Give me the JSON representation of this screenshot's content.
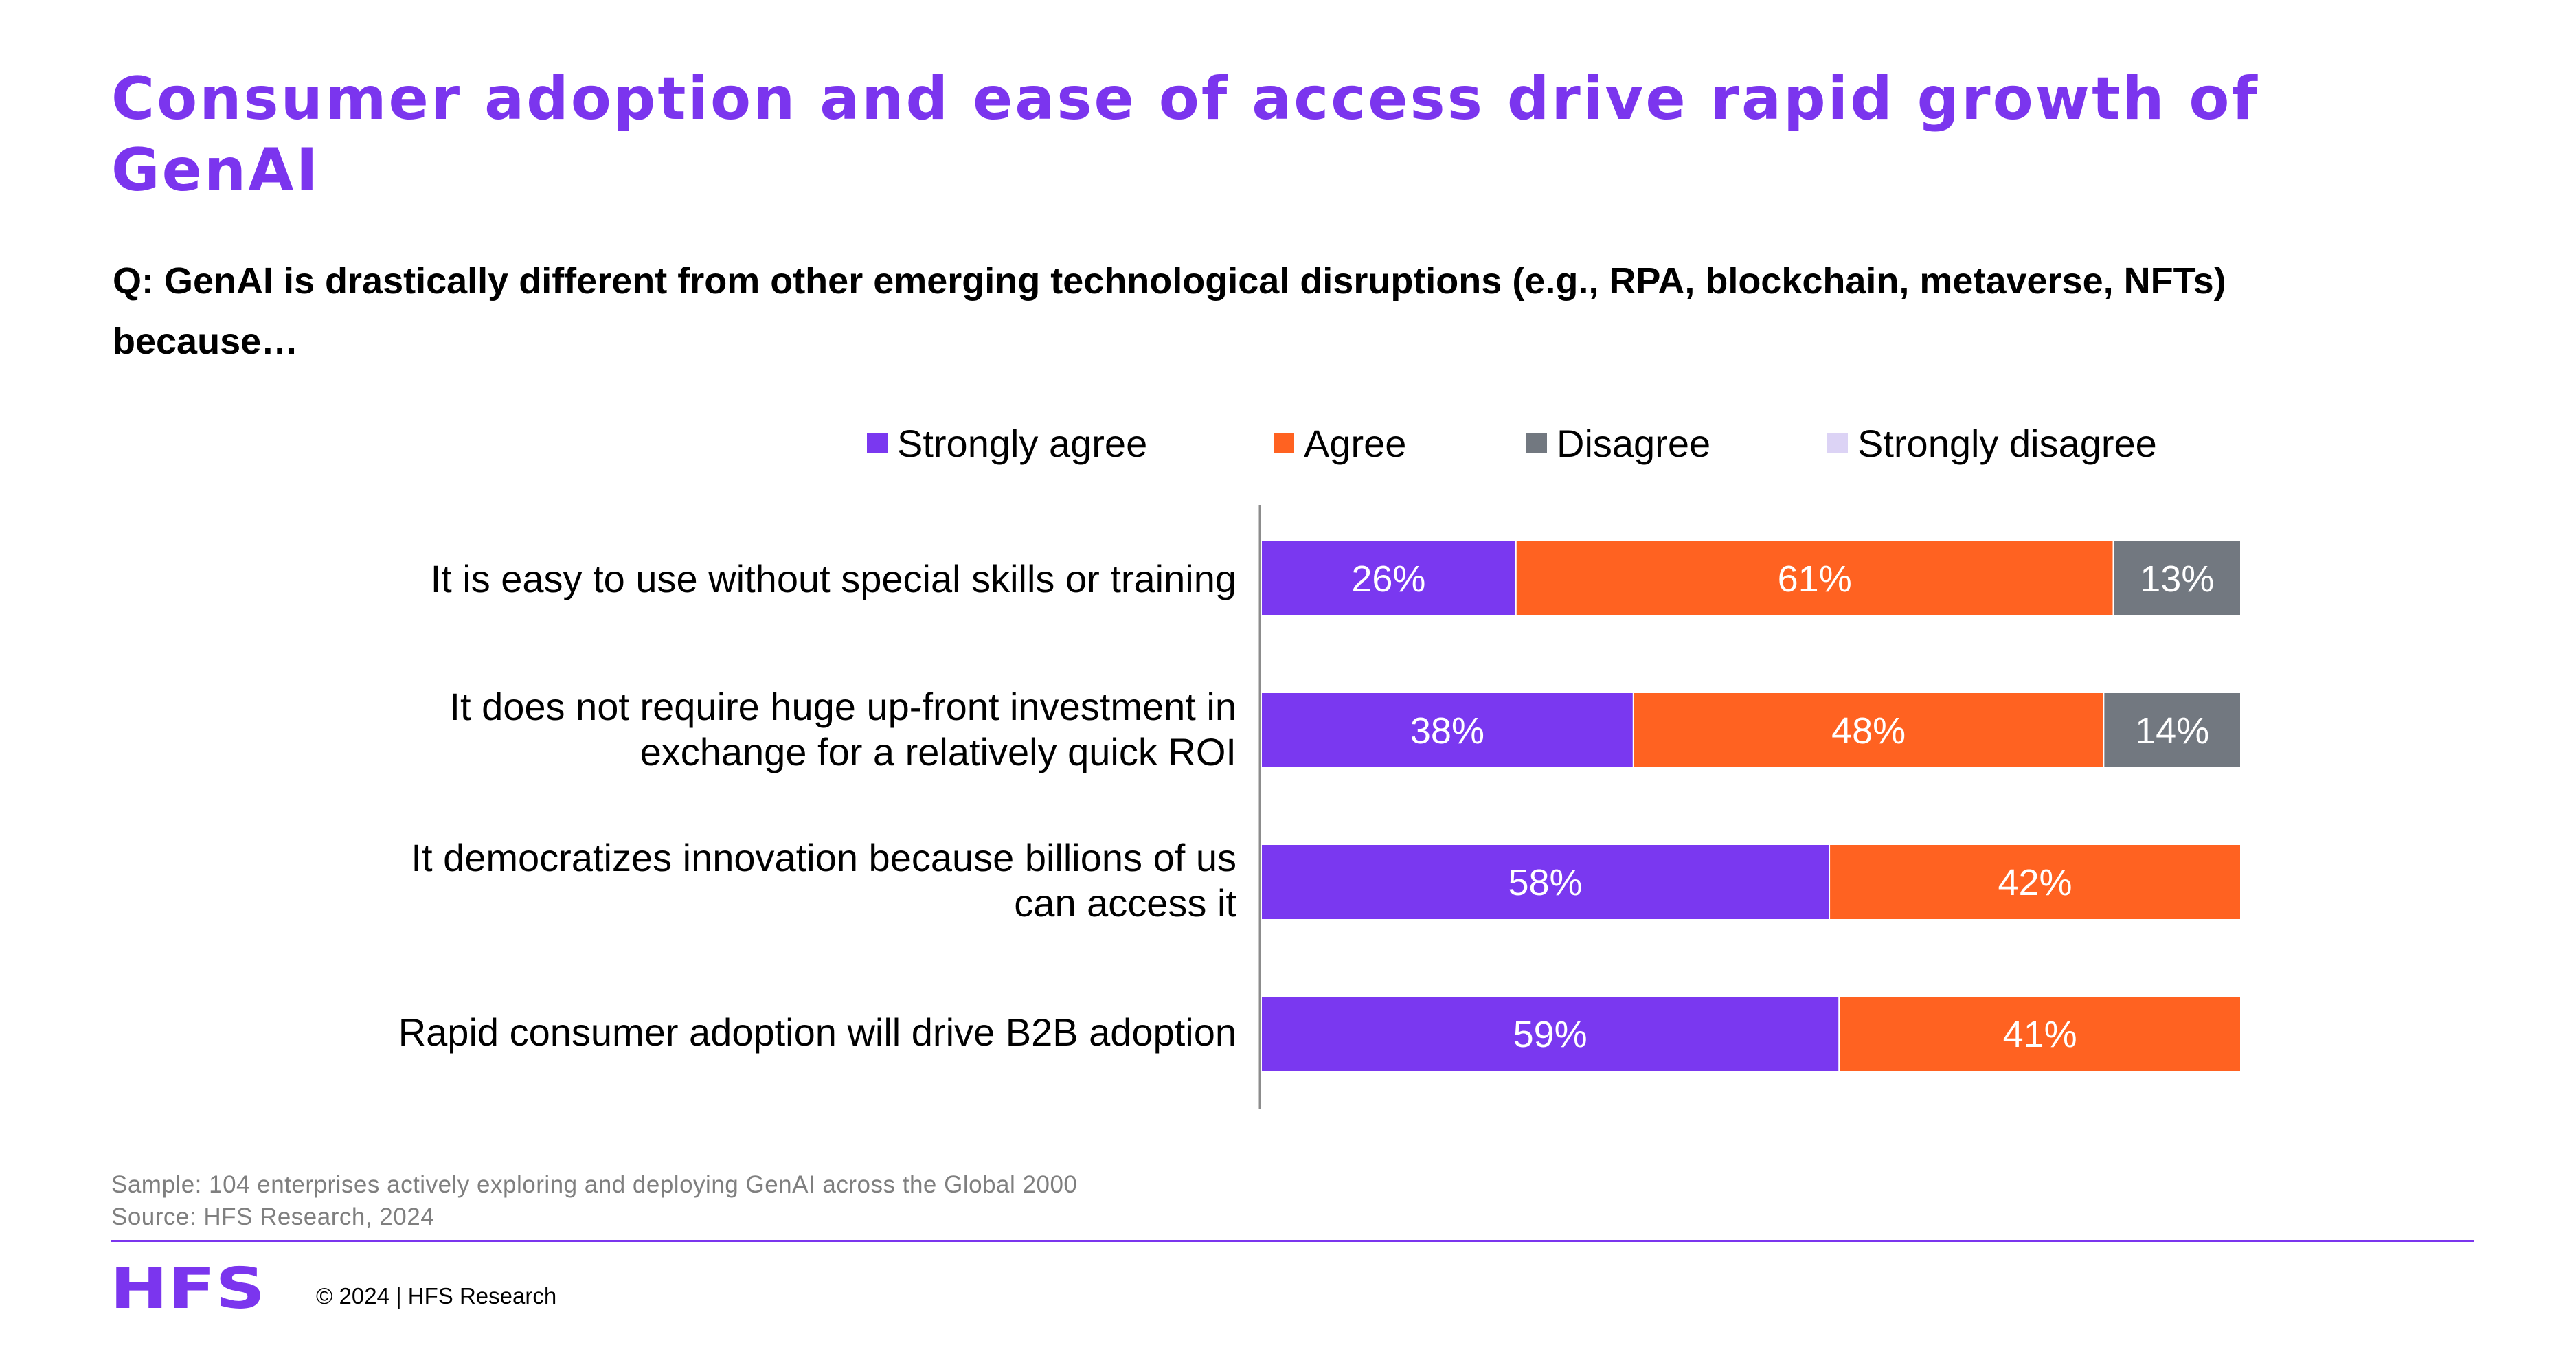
{
  "title": "Consumer adoption and ease of access drive rapid growth of GenAI",
  "question": "Q: GenAI is drastically different from other emerging technological disruptions (e.g., RPA, blockchain, metaverse, NFTs) because…",
  "colors": {
    "title": "#7b35ee",
    "strongly_agree": "#7a38f0",
    "agree": "#ff6221",
    "disagree": "#727880",
    "strongly_disagree": "#dcd3f5",
    "rule": "#7b35ee"
  },
  "chart_data": {
    "type": "bar",
    "orientation": "horizontal",
    "stacked": true,
    "categories": [
      "It is easy to use without special skills or training",
      "It does not require huge up-front investment in exchange for a relatively quick ROI",
      "It democratizes innovation because billions of us can access it",
      "Rapid consumer adoption will drive B2B adoption"
    ],
    "category_lines": [
      [
        "It is easy to use without special skills or training"
      ],
      [
        "It does not require huge up-front investment in",
        "exchange for a relatively quick ROI"
      ],
      [
        "It democratizes innovation because billions of us",
        "can access it"
      ],
      [
        "Rapid consumer adoption will drive B2B adoption"
      ]
    ],
    "series": [
      {
        "name": "Strongly agree",
        "values": [
          26,
          38,
          58,
          59
        ],
        "labels": [
          "26%",
          "38%",
          "58%",
          "59%"
        ]
      },
      {
        "name": "Agree",
        "values": [
          61,
          48,
          42,
          41
        ],
        "labels": [
          "61%",
          "48%",
          "42%",
          "41%"
        ]
      },
      {
        "name": "Disagree",
        "values": [
          13,
          14,
          0,
          0
        ],
        "labels": [
          "13%",
          "14%",
          "",
          ""
        ]
      },
      {
        "name": "Strongly disagree",
        "values": [
          0,
          0,
          0,
          0
        ],
        "labels": [
          "",
          "",
          "",
          ""
        ]
      }
    ],
    "xlim": [
      0,
      100
    ],
    "unit": "%",
    "legend_position": "top"
  },
  "footer": {
    "sample": "Sample: 104 enterprises actively exploring and deploying GenAI across the Global 2000",
    "source": "Source: HFS Research, 2024",
    "logo_text": "HFS",
    "copyright": "© 2024 | HFS Research"
  }
}
